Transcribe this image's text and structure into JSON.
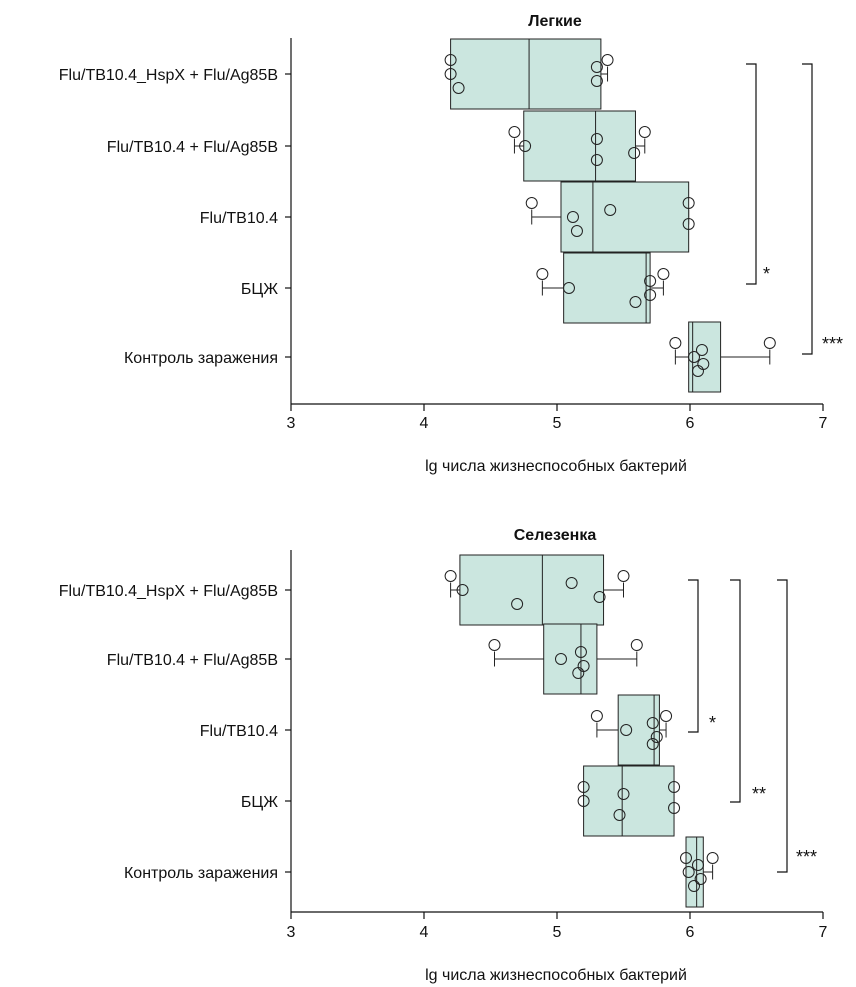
{
  "chart_data": [
    {
      "type": "boxplot",
      "title": "Легкие",
      "xlabel": "lg числа жизнеспособных бактерий",
      "xlim": [
        3,
        7
      ],
      "xticks": [
        3,
        4,
        5,
        6,
        7
      ],
      "xtick_labels": [
        "3",
        "4",
        "5",
        "6",
        "7"
      ],
      "box_color": "#cbe6df",
      "categories": [
        "Flu/TB10.4_HspX + Flu/Ag85B",
        "Flu/TB10.4 + Flu/Ag85B",
        "Flu/TB10.4",
        "БЦЖ",
        "Контроль заражения"
      ],
      "boxes": [
        {
          "min": 4.2,
          "q1": 4.2,
          "median": 4.79,
          "q3": 5.33,
          "max": 5.38,
          "points": [
            4.2,
            4.2,
            4.26,
            5.3,
            5.3,
            5.38
          ]
        },
        {
          "min": 4.68,
          "q1": 4.75,
          "median": 5.29,
          "q3": 5.59,
          "max": 5.66,
          "points": [
            4.68,
            4.76,
            5.3,
            5.3,
            5.58,
            5.66
          ]
        },
        {
          "min": 4.81,
          "q1": 5.03,
          "median": 5.27,
          "q3": 5.99,
          "max": 5.99,
          "points": [
            4.81,
            5.12,
            5.15,
            5.4,
            5.99,
            5.99
          ]
        },
        {
          "min": 4.89,
          "q1": 5.05,
          "median": 5.67,
          "q3": 5.7,
          "max": 5.8,
          "points": [
            4.89,
            5.09,
            5.59,
            5.7,
            5.7,
            5.8
          ]
        },
        {
          "min": 5.89,
          "q1": 5.99,
          "median": 6.02,
          "q3": 6.23,
          "max": 6.6,
          "points": [
            5.89,
            6.03,
            6.06,
            6.09,
            6.1,
            6.6
          ]
        }
      ],
      "significance": [
        {
          "label": "*"
        },
        {
          "label": "***"
        }
      ]
    },
    {
      "type": "boxplot",
      "title": "Селезенка",
      "xlabel": "lg числа жизнеспособных бактерий",
      "xlim": [
        3,
        7
      ],
      "xticks": [
        3,
        4,
        5,
        6,
        7
      ],
      "xtick_labels": [
        "3",
        "4",
        "5",
        "6",
        "7"
      ],
      "box_color": "#cbe6df",
      "categories": [
        "Flu/TB10.4_HspX + Flu/Ag85B",
        "Flu/TB10.4 + Flu/Ag85B",
        "Flu/TB10.4",
        "БЦЖ",
        "Контроль заражения"
      ],
      "boxes": [
        {
          "min": 4.2,
          "q1": 4.27,
          "median": 4.89,
          "q3": 5.35,
          "max": 5.5,
          "points": [
            4.2,
            4.29,
            4.7,
            5.11,
            5.32,
            5.5
          ]
        },
        {
          "min": 4.53,
          "q1": 4.9,
          "median": 5.18,
          "q3": 5.3,
          "max": 5.6,
          "points": [
            4.53,
            5.03,
            5.16,
            5.18,
            5.2,
            5.6
          ]
        },
        {
          "min": 5.3,
          "q1": 5.46,
          "median": 5.73,
          "q3": 5.77,
          "max": 5.82,
          "points": [
            5.3,
            5.52,
            5.72,
            5.72,
            5.75,
            5.82
          ]
        },
        {
          "min": 5.2,
          "q1": 5.2,
          "median": 5.49,
          "q3": 5.88,
          "max": 5.88,
          "points": [
            5.2,
            5.2,
            5.47,
            5.5,
            5.88,
            5.88
          ]
        },
        {
          "min": 5.97,
          "q1": 5.97,
          "median": 6.05,
          "q3": 6.1,
          "max": 6.17,
          "points": [
            5.97,
            5.99,
            6.03,
            6.06,
            6.08,
            6.17
          ]
        }
      ],
      "significance": [
        {
          "label": "*"
        },
        {
          "label": "**"
        },
        {
          "label": "***"
        }
      ]
    }
  ]
}
